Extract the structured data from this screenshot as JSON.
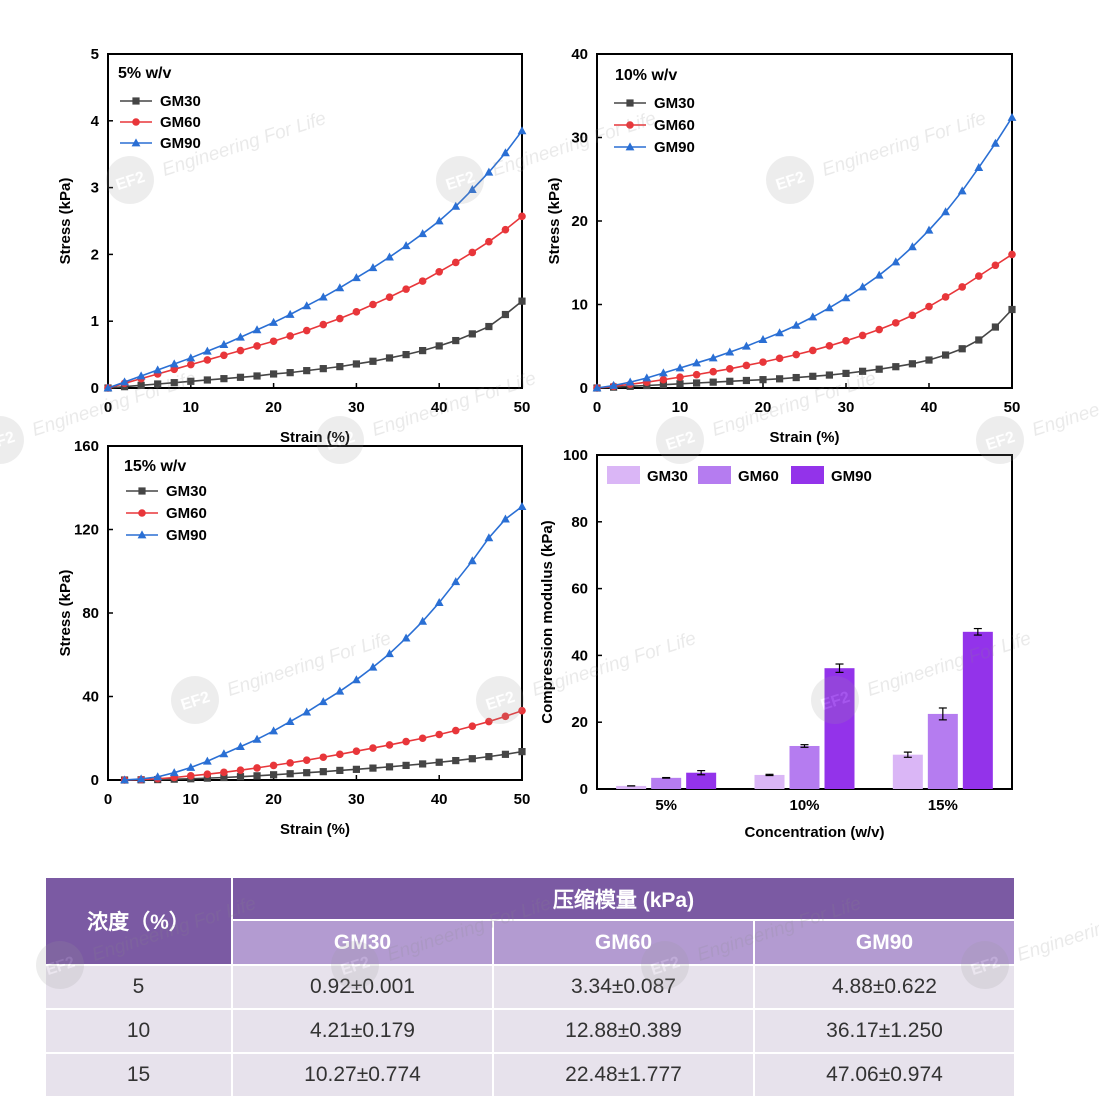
{
  "chart_data": [
    {
      "type": "line",
      "title": "5% w/v",
      "xlabel": "Strain (%)",
      "ylabel": "Stress (kPa)",
      "xlim": [
        0,
        50
      ],
      "ylim": [
        0,
        5
      ],
      "xticks": [
        "0",
        "10",
        "20",
        "30",
        "40",
        "50"
      ],
      "yticks": [
        "0",
        "1",
        "2",
        "3",
        "4",
        "5"
      ],
      "legend": [
        "GM30",
        "GM60",
        "GM90"
      ],
      "series": [
        {
          "name": "GM30",
          "x": [
            0,
            2,
            4,
            6,
            8,
            10,
            12,
            14,
            16,
            18,
            20,
            22,
            24,
            26,
            28,
            30,
            32,
            34,
            36,
            38,
            40,
            42,
            44,
            46,
            48,
            50
          ],
          "y": [
            0,
            0.02,
            0.04,
            0.06,
            0.08,
            0.1,
            0.12,
            0.14,
            0.16,
            0.18,
            0.21,
            0.23,
            0.26,
            0.29,
            0.32,
            0.36,
            0.4,
            0.45,
            0.5,
            0.56,
            0.63,
            0.71,
            0.81,
            0.92,
            1.1,
            1.3
          ]
        },
        {
          "name": "GM60",
          "x": [
            0,
            2,
            4,
            6,
            8,
            10,
            12,
            14,
            16,
            18,
            20,
            22,
            24,
            26,
            28,
            30,
            32,
            34,
            36,
            38,
            40,
            42,
            44,
            46,
            48,
            50
          ],
          "y": [
            0,
            0.07,
            0.14,
            0.21,
            0.28,
            0.35,
            0.42,
            0.49,
            0.56,
            0.63,
            0.7,
            0.78,
            0.86,
            0.95,
            1.04,
            1.14,
            1.25,
            1.36,
            1.48,
            1.6,
            1.74,
            1.88,
            2.03,
            2.19,
            2.37,
            2.57
          ]
        },
        {
          "name": "GM90",
          "x": [
            0,
            2,
            4,
            6,
            8,
            10,
            12,
            14,
            16,
            18,
            20,
            22,
            24,
            26,
            28,
            30,
            32,
            34,
            36,
            38,
            40,
            42,
            44,
            46,
            48,
            50
          ],
          "y": [
            0,
            0.09,
            0.18,
            0.27,
            0.36,
            0.45,
            0.55,
            0.65,
            0.76,
            0.87,
            0.98,
            1.1,
            1.23,
            1.36,
            1.5,
            1.65,
            1.8,
            1.96,
            2.13,
            2.31,
            2.5,
            2.72,
            2.97,
            3.23,
            3.52,
            3.85
          ]
        }
      ]
    },
    {
      "type": "line",
      "title": "10% w/v",
      "xlabel": "Strain (%)",
      "ylabel": "Stress (kPa)",
      "xlim": [
        0,
        50
      ],
      "ylim": [
        0,
        40
      ],
      "xticks": [
        "0",
        "10",
        "20",
        "30",
        "40",
        "50"
      ],
      "yticks": [
        "0",
        "10",
        "20",
        "30",
        "40"
      ],
      "legend": [
        "GM30",
        "GM60",
        "GM90"
      ],
      "series": [
        {
          "name": "GM30",
          "x": [
            0,
            2,
            4,
            6,
            8,
            10,
            12,
            14,
            16,
            18,
            20,
            22,
            24,
            26,
            28,
            30,
            32,
            34,
            36,
            38,
            40,
            42,
            44,
            46,
            48,
            50
          ],
          "y": [
            0,
            0.1,
            0.2,
            0.3,
            0.4,
            0.5,
            0.6,
            0.7,
            0.8,
            0.9,
            1.0,
            1.1,
            1.25,
            1.4,
            1.55,
            1.75,
            2.0,
            2.25,
            2.55,
            2.9,
            3.35,
            3.95,
            4.7,
            5.75,
            7.3,
            9.4
          ]
        },
        {
          "name": "GM60",
          "x": [
            0,
            2,
            4,
            6,
            8,
            10,
            12,
            14,
            16,
            18,
            20,
            22,
            24,
            26,
            28,
            30,
            32,
            34,
            36,
            38,
            40,
            42,
            44,
            46,
            48,
            50
          ],
          "y": [
            0,
            0.2,
            0.45,
            0.7,
            1.0,
            1.3,
            1.6,
            1.95,
            2.3,
            2.7,
            3.1,
            3.55,
            4.0,
            4.5,
            5.05,
            5.65,
            6.3,
            7.0,
            7.8,
            8.7,
            9.75,
            10.9,
            12.1,
            13.4,
            14.7,
            16.0
          ]
        },
        {
          "name": "GM90",
          "x": [
            0,
            2,
            4,
            6,
            8,
            10,
            12,
            14,
            16,
            18,
            20,
            22,
            24,
            26,
            28,
            30,
            32,
            34,
            36,
            38,
            40,
            42,
            44,
            46,
            48,
            50
          ],
          "y": [
            0,
            0.3,
            0.7,
            1.2,
            1.8,
            2.4,
            3.0,
            3.6,
            4.3,
            5.0,
            5.8,
            6.6,
            7.5,
            8.5,
            9.6,
            10.8,
            12.1,
            13.5,
            15.1,
            16.9,
            18.9,
            21.1,
            23.6,
            26.4,
            29.3,
            32.4
          ]
        }
      ]
    },
    {
      "type": "line",
      "title": "15% w/v",
      "xlabel": "Strain (%)",
      "ylabel": "Stress (kPa)",
      "xlim": [
        0,
        50
      ],
      "ylim": [
        0,
        160
      ],
      "xticks": [
        "0",
        "10",
        "20",
        "30",
        "40",
        "50"
      ],
      "yticks": [
        "0",
        "40",
        "80",
        "120",
        "160"
      ],
      "legend": [
        "GM30",
        "GM60",
        "GM90"
      ],
      "series": [
        {
          "name": "GM30",
          "x": [
            2,
            4,
            6,
            8,
            10,
            12,
            14,
            16,
            18,
            20,
            22,
            24,
            26,
            28,
            30,
            32,
            34,
            36,
            38,
            40,
            42,
            44,
            46,
            48,
            50
          ],
          "y": [
            0,
            0.1,
            0.2,
            0.4,
            0.6,
            0.9,
            1.2,
            1.6,
            2.0,
            2.5,
            3.0,
            3.5,
            4.0,
            4.6,
            5.1,
            5.7,
            6.3,
            7.0,
            7.7,
            8.5,
            9.3,
            10.2,
            11.2,
            12.3,
            13.6
          ]
        },
        {
          "name": "GM60",
          "x": [
            2,
            4,
            6,
            8,
            10,
            12,
            14,
            16,
            18,
            20,
            22,
            24,
            26,
            28,
            30,
            32,
            34,
            36,
            38,
            40,
            42,
            44,
            46,
            48,
            50
          ],
          "y": [
            0,
            0.2,
            0.6,
            1.2,
            2.0,
            2.8,
            3.7,
            4.7,
            5.8,
            7.0,
            8.2,
            9.5,
            10.9,
            12.3,
            13.8,
            15.3,
            16.8,
            18.4,
            20.0,
            21.8,
            23.7,
            25.8,
            28.0,
            30.5,
            33.2
          ]
        },
        {
          "name": "GM90",
          "x": [
            2,
            4,
            6,
            8,
            10,
            12,
            14,
            16,
            18,
            20,
            22,
            24,
            26,
            28,
            30,
            32,
            34,
            36,
            38,
            40,
            42,
            44,
            46,
            48,
            50
          ],
          "y": [
            0,
            0.5,
            1.5,
            3.5,
            6.0,
            9.0,
            12.5,
            16.0,
            19.5,
            23.5,
            28.0,
            32.5,
            37.5,
            42.5,
            48.0,
            54.0,
            60.5,
            68.0,
            76.0,
            85.0,
            95.0,
            105.0,
            116.0,
            125.0,
            131.0
          ]
        }
      ]
    },
    {
      "type": "bar",
      "title": "",
      "xlabel": "Concentration (w/v)",
      "ylabel": "Compression modulus (kPa)",
      "categories": [
        "5%",
        "10%",
        "15%"
      ],
      "ylim": [
        0,
        100
      ],
      "yticks": [
        "0",
        "20",
        "40",
        "60",
        "80",
        "100"
      ],
      "legend": [
        "GM30",
        "GM60",
        "GM90"
      ],
      "series": [
        {
          "name": "GM30",
          "values": [
            0.92,
            4.21,
            10.27
          ],
          "errors": [
            0.001,
            0.179,
            0.774
          ]
        },
        {
          "name": "GM60",
          "values": [
            3.34,
            12.88,
            22.48
          ],
          "errors": [
            0.087,
            0.389,
            1.777
          ]
        },
        {
          "name": "GM90",
          "values": [
            4.88,
            36.17,
            47.06
          ],
          "errors": [
            0.622,
            1.25,
            0.974
          ]
        }
      ]
    }
  ],
  "colors": {
    "GM30": "#454545",
    "GM60": "#e8363a",
    "GM90": "#2a6fd4",
    "bar_GM30": "#dab6f6",
    "bar_GM60": "#b57cf0",
    "bar_GM90": "#9333ea",
    "header": "#7b5aa3",
    "subheader": "#b39bd1",
    "row": "#e7e2ec"
  },
  "table": {
    "col_concentration": "浓度（%）",
    "group_header": "压缩模量 (kPa)",
    "columns": [
      "GM30",
      "GM60",
      "GM90"
    ],
    "rows": [
      [
        "5",
        "0.92±0.001",
        "3.34±0.087",
        "4.88±0.622"
      ],
      [
        "10",
        "4.21±0.179",
        "12.88±0.389",
        "36.17±1.250"
      ],
      [
        "15",
        "10.27±0.774",
        "22.48±1.777",
        "47.06±0.974"
      ]
    ]
  },
  "watermark": {
    "logo": "EF2",
    "text": "Engineering For Life"
  }
}
